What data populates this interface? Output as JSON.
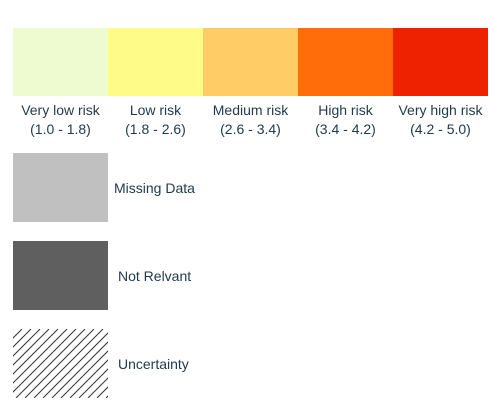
{
  "risk_levels": [
    {
      "label": "Very low risk",
      "range": "(1.0 - 1.8)",
      "color": "#eefbd0"
    },
    {
      "label": "Low risk",
      "range": "(1.8 - 2.6)",
      "color": "#fffb88"
    },
    {
      "label": "Medium risk",
      "range": "(2.6 - 3.4)",
      "color": "#ffcc66"
    },
    {
      "label": "High risk",
      "range": "(3.4 - 4.2)",
      "color": "#ff6c0a"
    },
    {
      "label": "Very high risk",
      "range": "(4.2 - 5.0)",
      "color": "#ee2200"
    }
  ],
  "legend": {
    "missing": {
      "label": "Missing Data",
      "color": "#c0c0c0"
    },
    "not_relevant": {
      "label": "Not Relvant",
      "color": "#5f5f5f"
    },
    "uncertainty": {
      "label": "Uncertainty",
      "pattern": "diagonal-hatch",
      "color": "#333333"
    }
  }
}
